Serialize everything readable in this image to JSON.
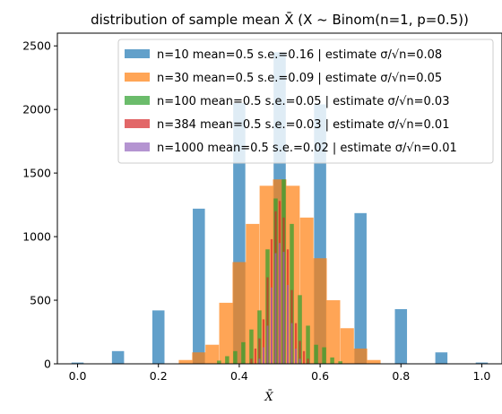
{
  "chart_data": {
    "type": "bar",
    "title": "distribution of sample mean X̄ (X ~ Binom(n=1, p=0.5))",
    "xlabel": "X̄",
    "ylabel": "",
    "xlim": [
      -0.05,
      1.05
    ],
    "ylim": [
      0,
      2600
    ],
    "xticks": [
      0.0,
      0.2,
      0.4,
      0.6,
      0.8,
      1.0
    ],
    "xtick_labels": [
      "0.0",
      "0.2",
      "0.4",
      "0.6",
      "0.8",
      "1.0"
    ],
    "yticks": [
      0,
      500,
      1000,
      1500,
      2000,
      2500
    ],
    "ytick_labels": [
      "0",
      "500",
      "1000",
      "1500",
      "2000",
      "2500"
    ],
    "grid": false,
    "legend_position": "top-right",
    "series": [
      {
        "name": "n=10 mean=0.5 s.e.=0.16 | estimate σ/√n=0.08",
        "color": "#1f77b4",
        "bin_width": 0.03,
        "x": [
          0.0,
          0.1,
          0.2,
          0.3,
          0.4,
          0.5,
          0.6,
          0.7,
          0.8,
          0.9,
          1.0
        ],
        "values": [
          10,
          100,
          420,
          1220,
          2050,
          2450,
          2040,
          1185,
          430,
          90,
          10
        ]
      },
      {
        "name": "n=30 mean=0.5 s.e.=0.09 | estimate σ/√n=0.05",
        "color": "#ff7f0e",
        "bin_width": 0.0333,
        "x": [
          0.267,
          0.3,
          0.333,
          0.367,
          0.4,
          0.433,
          0.467,
          0.5,
          0.533,
          0.567,
          0.6,
          0.633,
          0.667,
          0.7,
          0.733
        ],
        "values": [
          30,
          90,
          150,
          480,
          800,
          1100,
          1400,
          1450,
          1400,
          1150,
          830,
          500,
          280,
          120,
          30
        ]
      },
      {
        "name": "n=100 mean=0.5 s.e.=0.05 | estimate σ/√n=0.03",
        "color": "#2ca02c",
        "bin_width": 0.01,
        "x": [
          0.35,
          0.37,
          0.39,
          0.41,
          0.43,
          0.45,
          0.47,
          0.49,
          0.51,
          0.53,
          0.55,
          0.57,
          0.59,
          0.61,
          0.63,
          0.65
        ],
        "values": [
          25,
          60,
          100,
          170,
          270,
          420,
          900,
          1300,
          1450,
          1100,
          540,
          300,
          150,
          130,
          50,
          20
        ]
      },
      {
        "name": "n=384 mean=0.5 s.e.=0.03 | estimate σ/√n=0.01",
        "color": "#d62728",
        "bin_width": 0.005,
        "x": [
          0.43,
          0.44,
          0.45,
          0.46,
          0.47,
          0.48,
          0.49,
          0.5,
          0.51,
          0.52,
          0.53,
          0.54,
          0.55,
          0.56,
          0.57
        ],
        "values": [
          40,
          120,
          200,
          350,
          680,
          980,
          1200,
          1280,
          1150,
          900,
          580,
          320,
          180,
          100,
          40
        ]
      },
      {
        "name": "n=1000 mean=0.5 s.e.=0.02 | estimate σ/√n=0.01",
        "color": "#9467bd",
        "bin_width": 0.004,
        "x": [
          0.45,
          0.46,
          0.47,
          0.48,
          0.49,
          0.5,
          0.51,
          0.52,
          0.53,
          0.54,
          0.55
        ],
        "values": [
          40,
          130,
          300,
          600,
          870,
          950,
          880,
          620,
          320,
          120,
          40
        ]
      }
    ]
  }
}
